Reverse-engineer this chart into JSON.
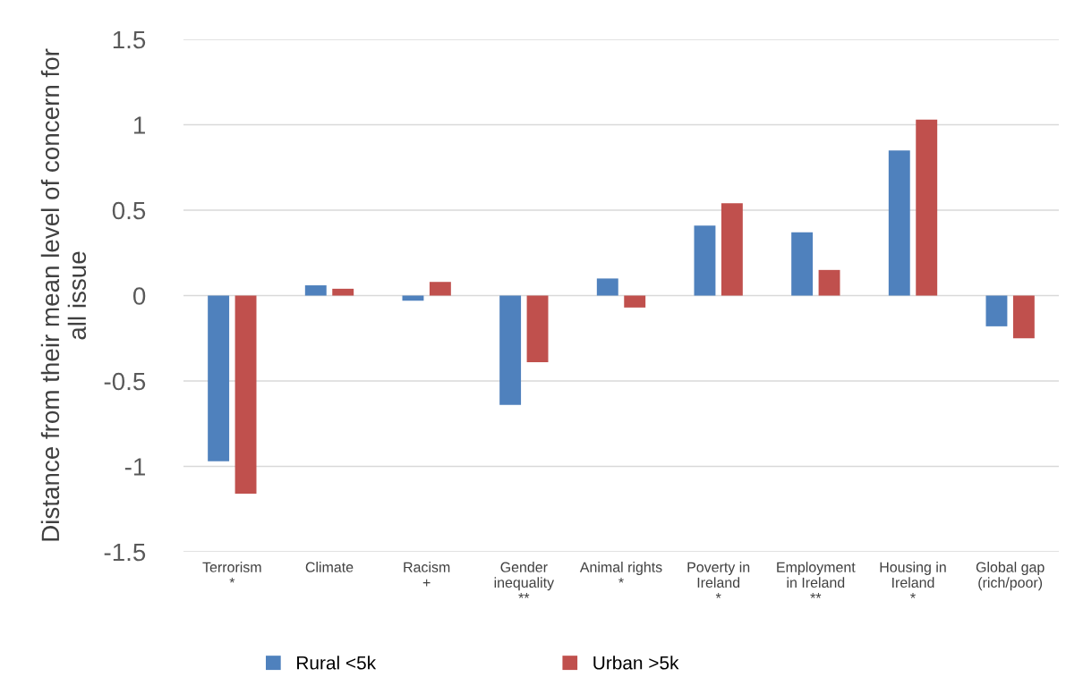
{
  "chart_data": {
    "type": "bar",
    "ylabel": "Distance from their mean level of concern for\nall issue",
    "categories": [
      "Terrorism\n*",
      "Climate",
      "Racism\n+",
      "Gender\ninequality\n**",
      "Animal rights\n*",
      "Poverty in\nIreland\n*",
      "Employment\nin Ireland\n**",
      "Housing in\nIreland\n*",
      "Global gap\n(rich/poor)"
    ],
    "series": [
      {
        "name": "Rural <5k",
        "color": "#4f81bd",
        "values": [
          -0.97,
          0.06,
          -0.03,
          -0.64,
          0.1,
          0.41,
          0.37,
          0.85,
          -0.18
        ]
      },
      {
        "name": "Urban >5k",
        "color": "#c0504d",
        "values": [
          -1.16,
          0.04,
          0.08,
          -0.39,
          -0.07,
          0.54,
          0.15,
          1.03,
          -0.25
        ]
      }
    ],
    "ylim": [
      -1.5,
      1.5
    ],
    "yticks": [
      -1.5,
      -1,
      -0.5,
      0,
      0.5,
      1,
      1.5
    ],
    "grid": "y",
    "legend": "bottom"
  }
}
